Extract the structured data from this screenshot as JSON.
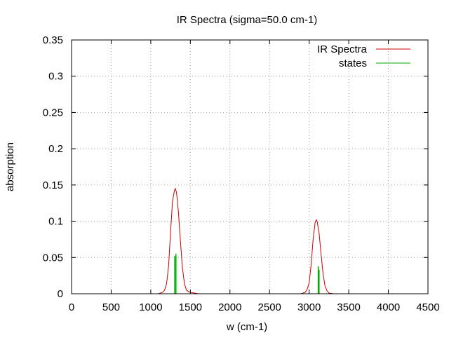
{
  "chart_data": {
    "type": "line",
    "title": "IR Spectra (sigma=50.0 cm-1)",
    "xlabel": "w (cm-1)",
    "ylabel": "absorption",
    "xlim": [
      0,
      4500
    ],
    "ylim": [
      0,
      0.35
    ],
    "xticks": [
      0,
      500,
      1000,
      1500,
      2000,
      2500,
      3000,
      3500,
      4000,
      4500
    ],
    "xtick_labels": [
      "0",
      "500",
      "1000",
      "1500",
      "2000",
      "2500",
      "3000",
      "3500",
      "4000",
      "4500"
    ],
    "yticks": [
      0,
      0.05,
      0.1,
      0.15,
      0.2,
      0.25,
      0.3,
      0.35
    ],
    "ytick_labels": [
      "0",
      "0.05",
      "0.1",
      "0.15",
      "0.2",
      "0.25",
      "0.3",
      "0.35"
    ],
    "grid": true,
    "legend_position": "top-right",
    "series": [
      {
        "name": "IR Spectra",
        "kind": "line",
        "color": "#cc0000",
        "x": [
          1000,
          1050,
          1100,
          1150,
          1175,
          1200,
          1225,
          1250,
          1275,
          1300,
          1310,
          1325,
          1350,
          1375,
          1400,
          1425,
          1450,
          1475,
          1500,
          1550,
          1600,
          2800,
          2850,
          2900,
          2950,
          2975,
          3000,
          3025,
          3050,
          3075,
          3090,
          3100,
          3125,
          3150,
          3175,
          3200,
          3225,
          3250,
          3300,
          3350
        ],
        "y": [
          0,
          0,
          0.0001,
          0.002,
          0.005,
          0.014,
          0.038,
          0.085,
          0.128,
          0.143,
          0.145,
          0.14,
          0.112,
          0.072,
          0.036,
          0.014,
          0.005,
          0.003,
          0.002,
          0.001,
          0,
          0,
          0,
          0.0001,
          0.002,
          0.006,
          0.015,
          0.04,
          0.075,
          0.098,
          0.102,
          0.1,
          0.084,
          0.055,
          0.028,
          0.011,
          0.004,
          0.001,
          0.0001,
          0
        ]
      },
      {
        "name": "states",
        "kind": "impulse",
        "color": "#00aa00",
        "x": [
          1303,
          1318,
          3115,
          3125
        ],
        "y": [
          0.052,
          0.055,
          0.038,
          0.033
        ]
      }
    ]
  }
}
